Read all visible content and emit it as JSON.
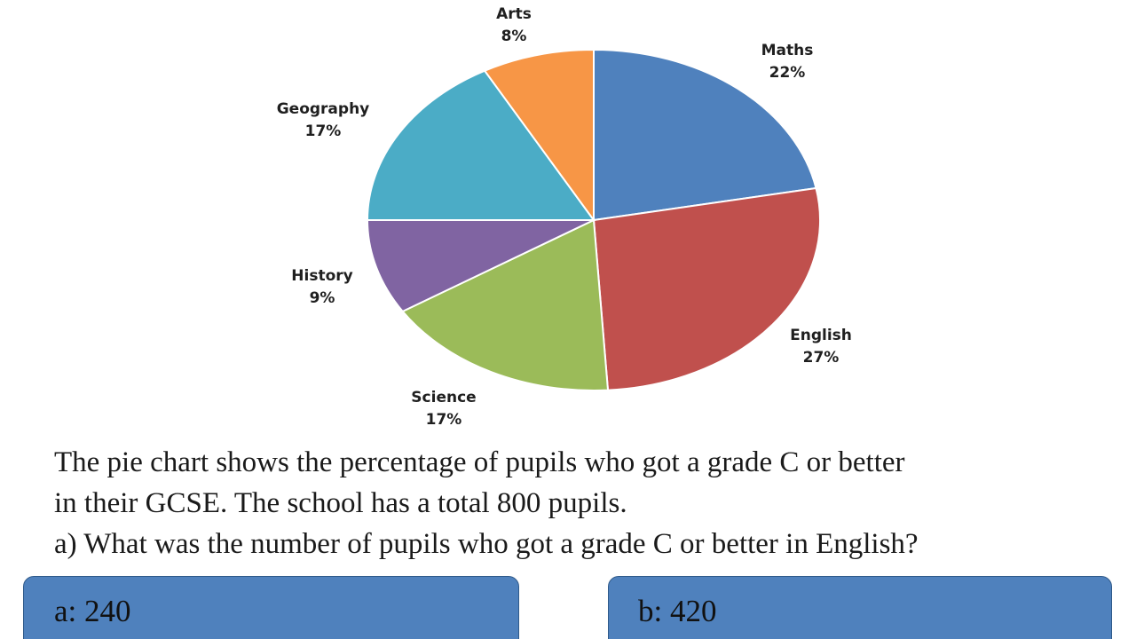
{
  "chart_data": {
    "type": "pie",
    "slices": [
      {
        "label": "Maths",
        "value": 22,
        "value_label": "22%",
        "color": "#4f81bd"
      },
      {
        "label": "English",
        "value": 27,
        "value_label": "27%",
        "color": "#c0504d"
      },
      {
        "label": "Science",
        "value": 17,
        "value_label": "17%",
        "color": "#9bbb59"
      },
      {
        "label": "History",
        "value": 9,
        "value_label": "9%",
        "color": "#8064a2"
      },
      {
        "label": "Geography",
        "value": 17,
        "value_label": "17%",
        "color": "#4bacc6"
      },
      {
        "label": "Arts",
        "value": 8,
        "value_label": "8%",
        "color": "#f79646"
      }
    ]
  },
  "question": {
    "line1": "The pie chart shows the percentage of pupils who got a grade C or better",
    "line2": "in their GCSE. The school has a total 800 pupils.",
    "line3": "a) What was the number of pupils who got a grade C or better in English?"
  },
  "answers": [
    {
      "label": "a: 240"
    },
    {
      "label": "b: 420"
    }
  ]
}
